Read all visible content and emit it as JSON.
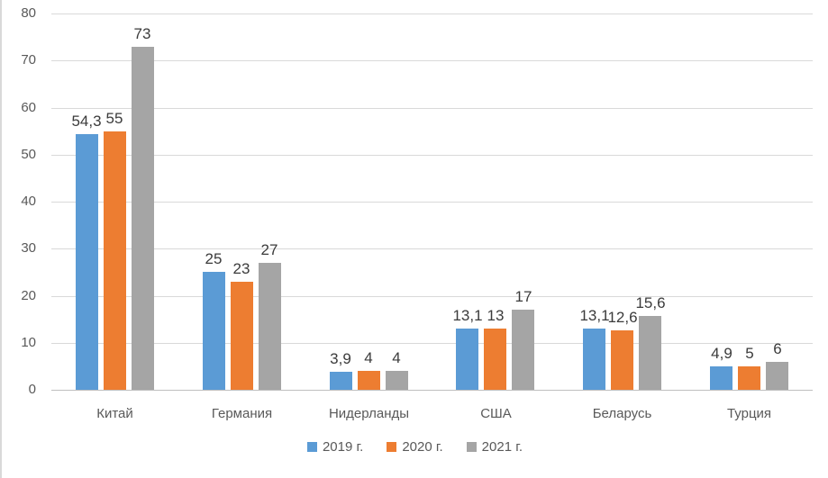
{
  "chart_data": {
    "type": "bar",
    "title": "",
    "xlabel": "",
    "ylabel": "",
    "categories": [
      "Китай",
      "Германия",
      "Нидерланды",
      "США",
      "Беларусь",
      "Турция"
    ],
    "series": [
      {
        "name": "2019 г.",
        "color": "#5B9BD5",
        "values": [
          54.3,
          25,
          3.9,
          13.1,
          13.1,
          4.9
        ],
        "labels": [
          "54,3",
          "25",
          "3,9",
          "13,1",
          "13,1",
          "4,9"
        ]
      },
      {
        "name": "2020 г.",
        "color": "#ED7D31",
        "values": [
          55,
          23,
          4,
          13,
          12.6,
          5
        ],
        "labels": [
          "55",
          "23",
          "4",
          "13",
          "12,6",
          "5"
        ]
      },
      {
        "name": "2021 г.",
        "color": "#A5A5A5",
        "values": [
          73,
          27,
          4,
          17,
          15.6,
          6
        ],
        "labels": [
          "73",
          "27",
          "4",
          "17",
          "15,6",
          "6"
        ]
      }
    ],
    "y_axis": {
      "min": 0,
      "max": 80,
      "step": 10,
      "tick_labels": [
        "0",
        "10",
        "20",
        "30",
        "40",
        "50",
        "60",
        "70",
        "80"
      ]
    },
    "grid": true,
    "legend_position": "bottom",
    "colors": {
      "gridline": "#D9D9D9",
      "axis_line": "#BFBFBF",
      "axis_text": "#595959",
      "data_label_text": "#3B3B3B",
      "background": "#FFFFFF"
    }
  }
}
